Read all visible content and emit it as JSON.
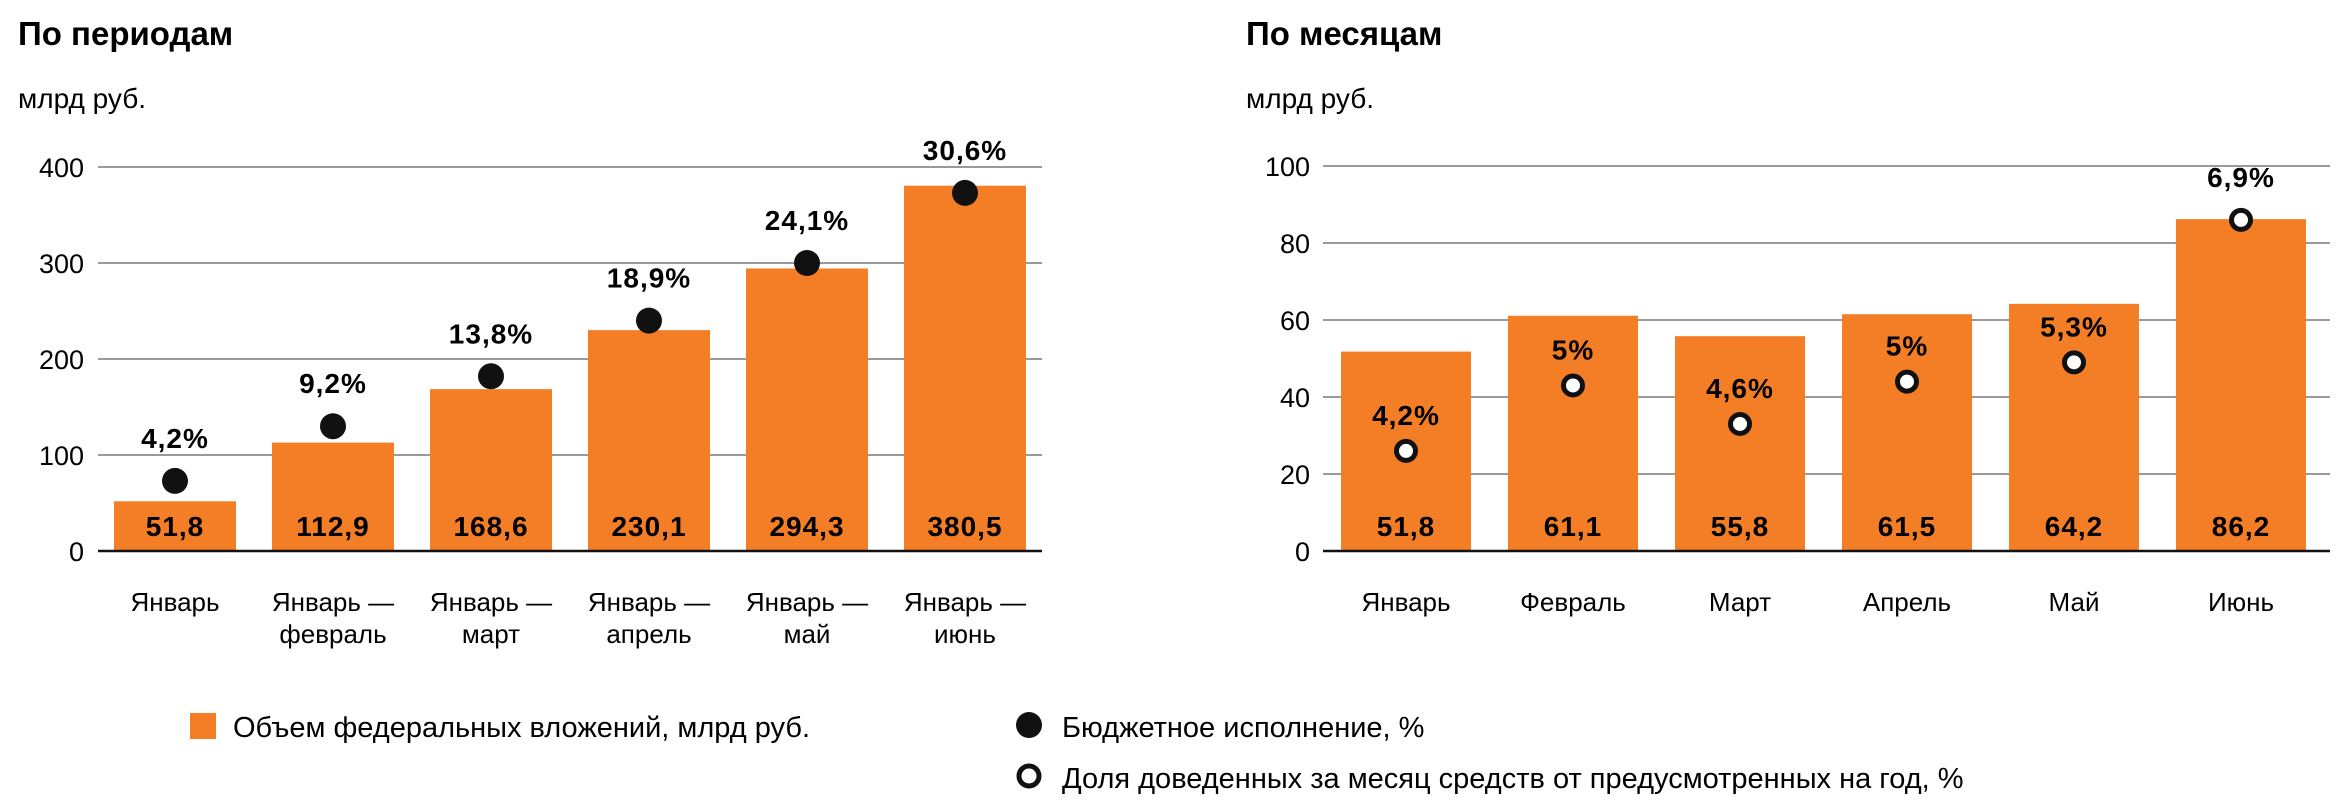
{
  "colors": {
    "bar": "#f47e26",
    "grid": "#9a9a9a",
    "axis": "#111111",
    "dot_fill": "#111111",
    "ring_fill": "#ffffff"
  },
  "legend": {
    "bar_label": "Объем федеральных вложений, млрд руб.",
    "filled_dot_label": "Бюджетное исполнение, %",
    "ring_dot_label": "Доля доведенных за месяц средств от предусмотренных на год, %"
  },
  "chart_data": [
    {
      "type": "bar",
      "title": "По периодам",
      "ylabel": "млрд руб.",
      "ylim": [
        0,
        400
      ],
      "yticks": [
        "0",
        "100",
        "200",
        "300",
        "400"
      ],
      "grid": true,
      "categories": [
        [
          "Январь"
        ],
        [
          "Январь —",
          "февраль"
        ],
        [
          "Январь —",
          "март"
        ],
        [
          "Январь —",
          "апрель"
        ],
        [
          "Январь —",
          "май"
        ],
        [
          "Январь —",
          "июнь"
        ]
      ],
      "values": [
        51.8,
        112.9,
        168.6,
        230.1,
        294.3,
        380.5
      ],
      "value_labels": [
        "51,8",
        "112,9",
        "168,6",
        "230,1",
        "294,3",
        "380,5"
      ],
      "marker_style": "filled",
      "marker_y": [
        73,
        130,
        182,
        240,
        300,
        373
      ],
      "marker_labels": [
        "4,2%",
        "9,2%",
        "13,8%",
        "18,9%",
        "24,1%",
        "30,6%"
      ]
    },
    {
      "type": "bar",
      "title": "По месяцам",
      "ylabel": "млрд руб.",
      "ylim": [
        0,
        100
      ],
      "yticks": [
        "0",
        "20",
        "40",
        "60",
        "80",
        "100"
      ],
      "grid": true,
      "categories": [
        [
          "Январь"
        ],
        [
          "Февраль"
        ],
        [
          "Март"
        ],
        [
          "Апрель"
        ],
        [
          "Май"
        ],
        [
          "Июнь"
        ]
      ],
      "values": [
        51.8,
        61.1,
        55.8,
        61.5,
        64.2,
        86.2
      ],
      "value_labels": [
        "51,8",
        "61,1",
        "55,8",
        "61,5",
        "64,2",
        "86,2"
      ],
      "marker_style": "ring",
      "marker_y": [
        26,
        43,
        33,
        44,
        49,
        86
      ],
      "marker_labels": [
        "4,2%",
        "5%",
        "4,6%",
        "5%",
        "5,3%",
        "6,9%"
      ]
    }
  ]
}
